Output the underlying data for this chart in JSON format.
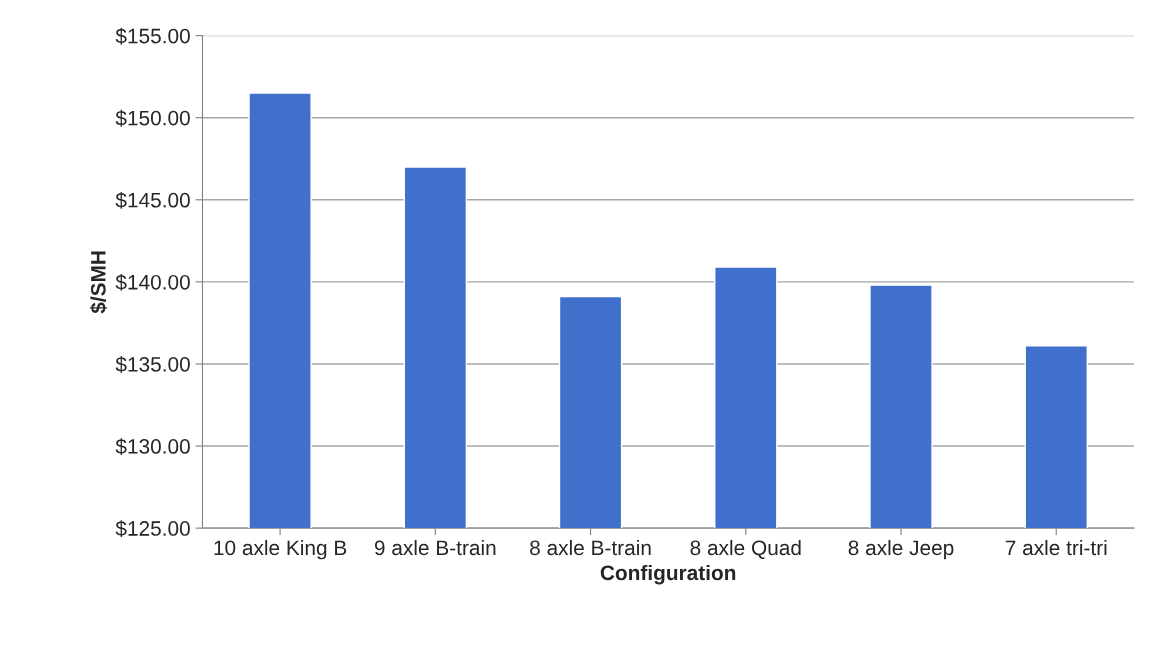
{
  "chart_data": {
    "type": "bar",
    "xlabel": "Configuration",
    "ylabel": "$/SMH",
    "categories": [
      "10 axle King B",
      "9 axle B-train",
      "8 axle B-train",
      "8 axle Quad",
      "8 axle Jeep",
      "7 axle tri-tri"
    ],
    "values": [
      151.5,
      147.0,
      139.1,
      140.9,
      139.8,
      136.1
    ],
    "color": "#4070cc",
    "ylim": [
      125,
      155
    ],
    "yticks": [
      {
        "value": 125,
        "label": "$125.00"
      },
      {
        "value": 130,
        "label": "$130.00"
      },
      {
        "value": 135,
        "label": "$135.00"
      },
      {
        "value": 140,
        "label": "$140.00"
      },
      {
        "value": 145,
        "label": "$145.00"
      },
      {
        "value": 150,
        "label": "$150.00"
      },
      {
        "value": 155,
        "label": "$155.00"
      }
    ],
    "grid": "y",
    "legend": false
  }
}
